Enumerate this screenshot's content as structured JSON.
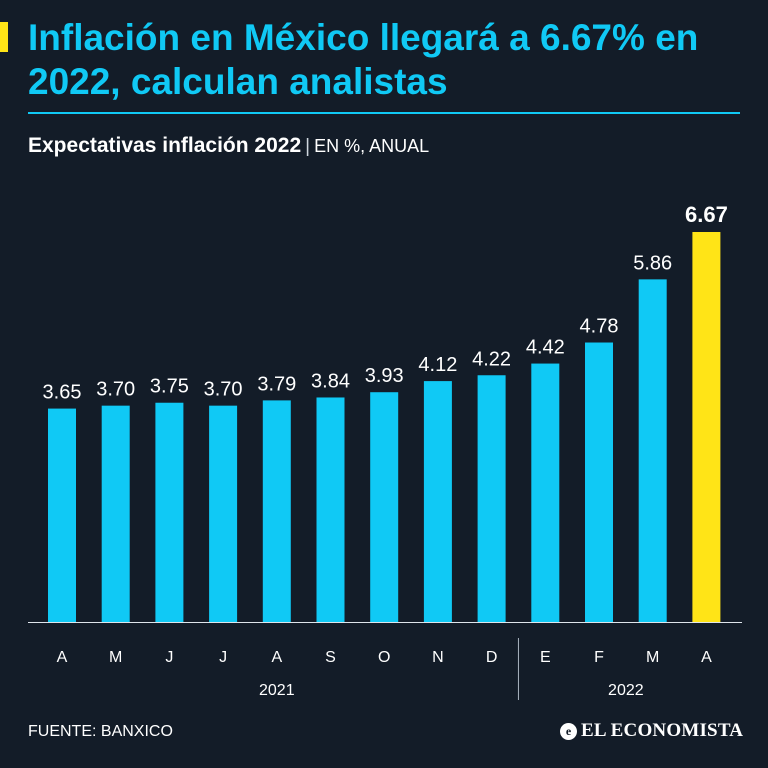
{
  "header": {
    "title": "Inflación en México llegará a 6.67% en 2022, calculan analistas",
    "subtitle_main": "Expectativas inflación 2022",
    "subtitle_separator": "|",
    "subtitle_unit": "EN %, ANUAL"
  },
  "footer": {
    "source": "FUENTE: BANXICO",
    "brand": "EL ECONOMISTA",
    "brand_mark": "e"
  },
  "colors": {
    "background": "#131c28",
    "bar": "#10c9f5",
    "highlight": "#ffe417",
    "text": "#ffffff"
  },
  "chart_data": {
    "type": "bar",
    "title": "Expectativas inflación 2022",
    "ylabel": "EN %, ANUAL",
    "xlabel": "",
    "ylim": [
      0,
      6.67
    ],
    "categories": [
      "A",
      "M",
      "J",
      "J",
      "A",
      "S",
      "O",
      "N",
      "D",
      "E",
      "F",
      "M",
      "A"
    ],
    "values": [
      3.65,
      3.7,
      3.75,
      3.7,
      3.79,
      3.84,
      3.93,
      4.12,
      4.22,
      4.42,
      4.78,
      5.86,
      6.67
    ],
    "value_labels": [
      "3.65",
      "3.70",
      "3.75",
      "3.70",
      "3.79",
      "3.84",
      "3.93",
      "4.12",
      "4.22",
      "4.42",
      "4.78",
      "5.86",
      "6.67"
    ],
    "highlight_index": 12,
    "groups": [
      {
        "label": "2021",
        "start": 0,
        "end": 8
      },
      {
        "label": "2022",
        "start": 9,
        "end": 12
      }
    ]
  }
}
